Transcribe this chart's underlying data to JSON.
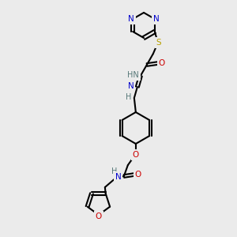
{
  "bg_color": "#ebebeb",
  "atom_colors": {
    "C": "#000000",
    "N": "#0000cc",
    "O": "#cc0000",
    "S": "#b8a000",
    "H": "#557777"
  },
  "figsize": [
    3.0,
    3.0
  ],
  "dpi": 100
}
